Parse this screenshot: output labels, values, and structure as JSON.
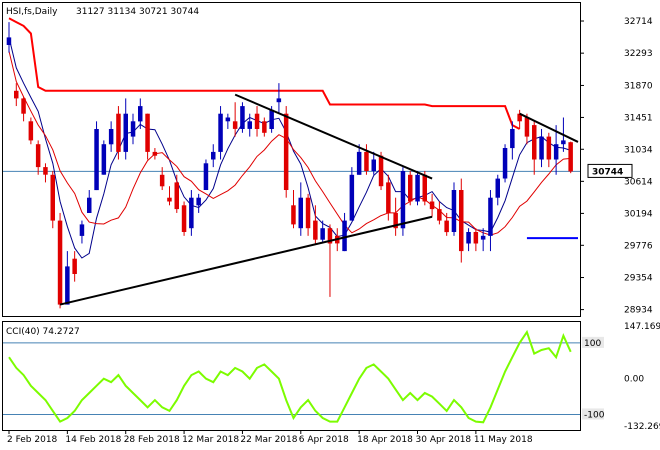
{
  "chart_data": {
    "type": "candlestick",
    "header": {
      "symbol": "HSI,fs,Daily",
      "ohlc": "31127 31134 30721 30744"
    },
    "price_axis": {
      "ticks": [
        28934,
        29354,
        29776,
        30194,
        30614,
        31034,
        31451,
        31870,
        32293,
        32714
      ],
      "range": [
        28850,
        32950
      ],
      "current_price": 30744,
      "current_price_label": "30744"
    },
    "x_axis": {
      "date_labels": [
        "2 Feb 2018",
        "14 Feb 2018",
        "28 Feb 2018",
        "12 Mar 2018",
        "22 Mar 2018",
        "6 Apr 2018",
        "18 Apr 2018",
        "30 Apr 2018",
        "11 May 2018"
      ],
      "date_label_bar_index": [
        0,
        8,
        16,
        24,
        32,
        40,
        48,
        56,
        64
      ]
    },
    "candles": [
      [
        32400,
        32700,
        32300,
        32500
      ],
      [
        31800,
        31900,
        31600,
        31700
      ],
      [
        31700,
        31720,
        31400,
        31500
      ],
      [
        31400,
        31450,
        31100,
        31150
      ],
      [
        31100,
        31150,
        30700,
        30800
      ],
      [
        30800,
        30850,
        30600,
        30700
      ],
      [
        30700,
        30750,
        30000,
        30100
      ],
      [
        30100,
        30200,
        28950,
        29000
      ],
      [
        29000,
        29700,
        29000,
        29500
      ],
      [
        29600,
        29700,
        29300,
        29400
      ],
      [
        29900,
        30100,
        29800,
        30050
      ],
      [
        30200,
        30500,
        30200,
        30400
      ],
      [
        30500,
        31400,
        30500,
        31300
      ],
      [
        30700,
        31150,
        30700,
        31100
      ],
      [
        31100,
        31400,
        31000,
        31300
      ],
      [
        31500,
        31600,
        30900,
        31000
      ],
      [
        31000,
        31700,
        30900,
        31500
      ],
      [
        31200,
        31500,
        31100,
        31400
      ],
      [
        31400,
        31700,
        31300,
        31600
      ],
      [
        31500,
        31500,
        30900,
        31000
      ],
      [
        31000,
        31050,
        30900,
        30950
      ],
      [
        30700,
        30800,
        30500,
        30550
      ],
      [
        30400,
        30550,
        30300,
        30350
      ],
      [
        30600,
        30700,
        30200,
        30250
      ],
      [
        30300,
        30350,
        29900,
        29950
      ],
      [
        30000,
        30500,
        29900,
        30400
      ],
      [
        30300,
        30450,
        30200,
        30400
      ],
      [
        30500,
        30900,
        30500,
        30850
      ],
      [
        30900,
        31100,
        30800,
        31000
      ],
      [
        31000,
        31600,
        30900,
        31500
      ],
      [
        31400,
        31500,
        31300,
        31450
      ],
      [
        31400,
        31650,
        31200,
        31300
      ],
      [
        31300,
        31650,
        31250,
        31600
      ],
      [
        31300,
        31500,
        31200,
        31400
      ],
      [
        31500,
        31600,
        31200,
        31300
      ],
      [
        31400,
        31450,
        31200,
        31250
      ],
      [
        31300,
        31600,
        31250,
        31550
      ],
      [
        31650,
        31900,
        31500,
        31700
      ],
      [
        31500,
        31600,
        30400,
        30500
      ],
      [
        30300,
        30500,
        30000,
        30050
      ],
      [
        30000,
        30600,
        29900,
        30400
      ],
      [
        30400,
        30450,
        29900,
        30000
      ],
      [
        30100,
        30300,
        29800,
        29850
      ],
      [
        29850,
        30100,
        29800,
        30000
      ],
      [
        30000,
        30050,
        29100,
        29800
      ],
      [
        29900,
        30000,
        29700,
        29800
      ],
      [
        29700,
        30200,
        29700,
        30100
      ],
      [
        30100,
        30800,
        30100,
        30700
      ],
      [
        30700,
        31100,
        30700,
        31000
      ],
      [
        31000,
        31100,
        30700,
        30750
      ],
      [
        30750,
        31000,
        30700,
        30900
      ],
      [
        30950,
        31000,
        30500,
        30550
      ],
      [
        30600,
        30700,
        30100,
        30200
      ],
      [
        30200,
        30400,
        29900,
        30000
      ],
      [
        30000,
        30800,
        29900,
        30750
      ],
      [
        30700,
        30750,
        30300,
        30350
      ],
      [
        30350,
        30750,
        30300,
        30700
      ],
      [
        30700,
        30750,
        30300,
        30350
      ],
      [
        30350,
        30450,
        30150,
        30250
      ],
      [
        30250,
        30350,
        30050,
        30100
      ],
      [
        30100,
        30200,
        29900,
        29950
      ],
      [
        29950,
        30600,
        29900,
        30500
      ],
      [
        30500,
        30650,
        29550,
        29700
      ],
      [
        29800,
        30000,
        29700,
        29950
      ],
      [
        29950,
        30000,
        29700,
        29800
      ],
      [
        29850,
        30000,
        29700,
        29900
      ],
      [
        29900,
        30500,
        29700,
        30400
      ],
      [
        30400,
        30700,
        30300,
        30650
      ],
      [
        30650,
        31100,
        30600,
        31050
      ],
      [
        31050,
        31400,
        30900,
        31300
      ],
      [
        31500,
        31550,
        31300,
        31400
      ],
      [
        31450,
        31500,
        31100,
        31200
      ],
      [
        31350,
        31400,
        30700,
        30900
      ],
      [
        30900,
        31300,
        30800,
        31200
      ],
      [
        31200,
        31250,
        30800,
        30900
      ],
      [
        30900,
        31350,
        30700,
        31100
      ],
      [
        31100,
        31450,
        31000,
        31150
      ],
      [
        31127,
        31134,
        30721,
        30744
      ]
    ],
    "indicators": {
      "cci": {
        "label": "CCI(40) 74.2727",
        "period": 40,
        "last": 74.2727,
        "axis_labels": [
          "147.1698",
          "100",
          "0.00",
          "-100",
          "-132.269"
        ],
        "range": [
          -132.269,
          147.1698
        ],
        "values": [
          60,
          30,
          10,
          -20,
          -40,
          -60,
          -90,
          -120,
          -110,
          -90,
          -60,
          -40,
          -20,
          0,
          -10,
          10,
          -20,
          -40,
          -60,
          -80,
          -60,
          -80,
          -90,
          -60,
          -20,
          10,
          20,
          0,
          -10,
          20,
          10,
          30,
          20,
          0,
          30,
          40,
          20,
          0,
          -60,
          -110,
          -80,
          -60,
          -90,
          -110,
          -120,
          -120,
          -80,
          -40,
          0,
          30,
          40,
          20,
          0,
          -30,
          -60,
          -40,
          -60,
          -40,
          -50,
          -70,
          -90,
          -60,
          -80,
          -110,
          -120,
          -122,
          -80,
          -30,
          20,
          60,
          100,
          130,
          70,
          80,
          85,
          60,
          120,
          75
        ]
      },
      "red_step_line": [
        32750,
        32700,
        32650,
        32550,
        31850,
        31800,
        31800,
        31800,
        31800,
        31800,
        31800,
        31800,
        31800,
        31800,
        31800,
        31800,
        31800,
        31800,
        31800,
        31800,
        31800,
        31800,
        31800,
        31800,
        31800,
        31800,
        31800,
        31800,
        31800,
        31800,
        31800,
        31800,
        31800,
        31800,
        31800,
        31800,
        31800,
        31800,
        31800,
        31800,
        31800,
        31800,
        31800,
        31800,
        31620,
        31620,
        31620,
        31620,
        31620,
        31620,
        31620,
        31620,
        31620,
        31620,
        31620,
        31620,
        31620,
        31620,
        31600,
        31600,
        31600,
        31600,
        31600,
        31600,
        31600,
        31600,
        31600,
        31600,
        31600,
        31350,
        31300
      ],
      "blue_segment": {
        "from_bar": 71,
        "to_bar": 78,
        "value": 29870
      },
      "trend_lines": [
        {
          "from": [
            7,
            29000
          ],
          "to": [
            58,
            30150
          ],
          "color": "black"
        },
        {
          "from": [
            31,
            31750
          ],
          "to": [
            58,
            30650
          ],
          "color": "black"
        },
        {
          "from": [
            70,
            31500
          ],
          "to": [
            78,
            31130
          ],
          "color": "black"
        }
      ]
    },
    "colors": {
      "bull": "#0000b8",
      "bear": "#e00000",
      "fast_ma": "#00008b",
      "slow_ma": "#e00000",
      "step_line": "#ff0000",
      "trend_line": "#000000",
      "cci_line": "#7cfc00",
      "cci_level": "#4682b4",
      "grid_dash": "#a0a0a0",
      "price_label_bg": "#ffffff"
    }
  }
}
